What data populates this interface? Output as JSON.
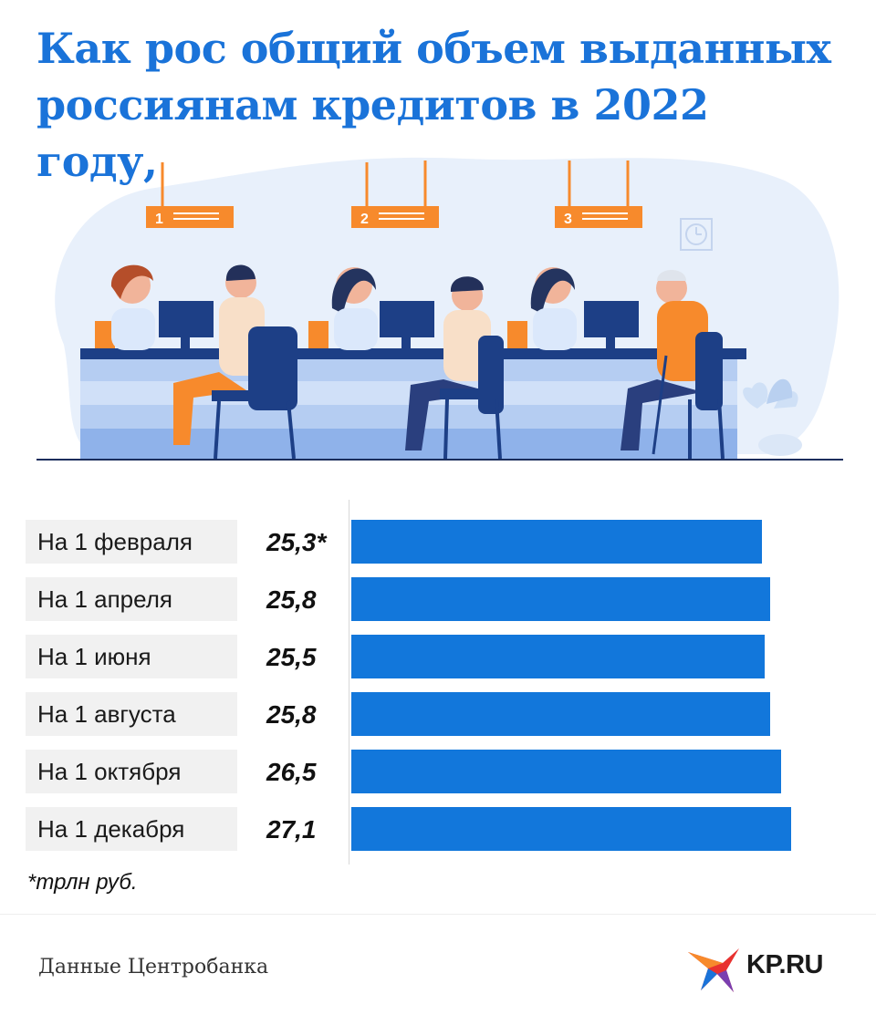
{
  "title": "Как рос общий объем выданных россиянам кредитов в 2022 году,",
  "illustration": {
    "window_numbers": [
      "1",
      "2",
      "3"
    ],
    "icons": [
      "bank-counter-illustration",
      "clock-icon",
      "plant-icon"
    ]
  },
  "chart_data": {
    "type": "bar",
    "orientation": "horizontal",
    "categories": [
      "На 1 февраля",
      "На 1 апреля",
      "На 1 июня",
      "На 1 августа",
      "На 1 октября",
      "На 1 декабря"
    ],
    "values": [
      25.3,
      25.8,
      25.5,
      25.8,
      26.5,
      27.1
    ],
    "value_labels": [
      "25,3*",
      "25,8",
      "25,5",
      "25,8",
      "26,5",
      "27,1"
    ],
    "unit_note": "*трлн руб.",
    "bar_color": "#1277db"
  },
  "footer": {
    "source": "Данные Центробанка",
    "logo_text": "KP.RU"
  },
  "colors": {
    "title": "#1a73d9",
    "accent_orange": "#f78a2c",
    "logo_red": "#e8312f"
  }
}
